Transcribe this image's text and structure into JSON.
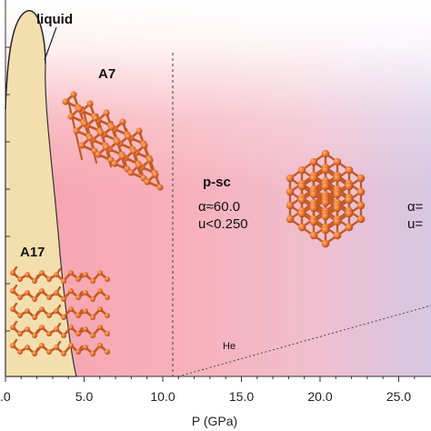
{
  "phases": {
    "liquid": "liquid",
    "a7": "A7",
    "psc": "p-sc",
    "a17": "A17"
  },
  "psc_params": {
    "alpha": "α≈60.0",
    "u": "u<0.250"
  },
  "right_params": {
    "alpha": "α=",
    "u": "u="
  },
  "he_label": "He",
  "x_axis": {
    "title": "P (GPa)",
    "ticks": [
      ".0",
      "5.0",
      "10.0",
      "15.0",
      "20.0",
      "25.0"
    ],
    "range": [
      0,
      26.5
    ]
  },
  "colors": {
    "a17_region": "#f3dfae",
    "a7_region": "#f6a6ae",
    "psc_region": "#f6c0cc",
    "right_region": "#d8c8e2",
    "crystal": "#e8732e",
    "crystal_dark": "#a8451a"
  }
}
